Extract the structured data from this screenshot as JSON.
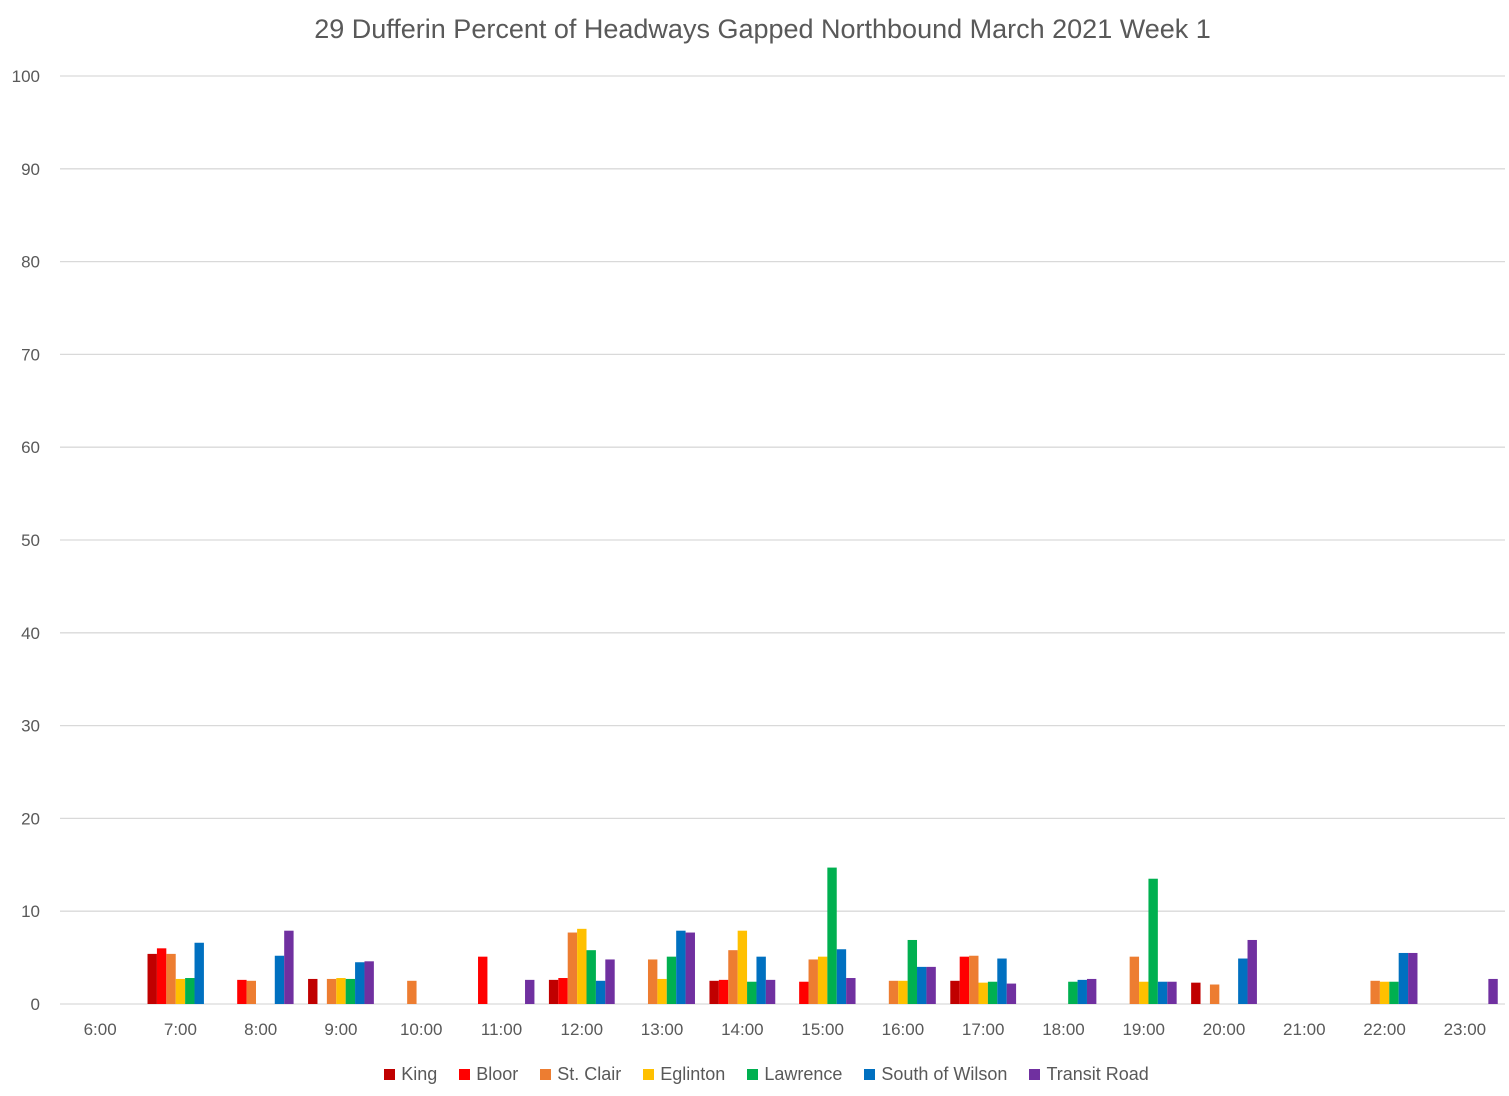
{
  "chart_data": {
    "type": "bar",
    "title": "29 Dufferin  Percent of Headways Gapped Northbound March 2021 Week 1",
    "xlabel": "",
    "ylabel": "",
    "ylim": [
      0,
      100
    ],
    "yticks": [
      0,
      10,
      20,
      30,
      40,
      50,
      60,
      70,
      80,
      90,
      100
    ],
    "grid": true,
    "legend_position": "bottom",
    "categories": [
      "6:00",
      "7:00",
      "8:00",
      "9:00",
      "10:00",
      "11:00",
      "12:00",
      "13:00",
      "14:00",
      "15:00",
      "16:00",
      "17:00",
      "18:00",
      "19:00",
      "20:00",
      "21:00",
      "22:00",
      "23:00"
    ],
    "series": [
      {
        "name": "King",
        "color": "#C00000",
        "values": [
          0,
          5.4,
          0,
          2.7,
          0,
          0,
          2.6,
          0,
          2.5,
          0,
          0,
          2.5,
          0,
          0,
          2.3,
          0,
          0,
          0
        ]
      },
      {
        "name": "Bloor",
        "color": "#FF0000",
        "values": [
          0,
          6.0,
          2.6,
          0,
          0,
          5.1,
          2.8,
          0,
          2.6,
          2.4,
          0,
          5.1,
          0,
          0,
          0,
          0,
          0,
          0
        ]
      },
      {
        "name": "St. Clair",
        "color": "#ED7D31",
        "values": [
          0,
          5.4,
          2.5,
          2.7,
          2.5,
          0,
          7.7,
          4.8,
          5.8,
          4.8,
          2.5,
          5.2,
          0,
          5.1,
          2.1,
          0,
          2.5,
          0
        ]
      },
      {
        "name": "Eglinton",
        "color": "#FFC000",
        "values": [
          0,
          2.7,
          0,
          2.8,
          0,
          0,
          8.1,
          2.7,
          7.9,
          5.1,
          2.5,
          2.3,
          0,
          2.4,
          0,
          0,
          2.4,
          0
        ]
      },
      {
        "name": "Lawrence",
        "color": "#00B050",
        "values": [
          0,
          2.8,
          0,
          2.7,
          0,
          0,
          5.8,
          5.1,
          2.4,
          14.7,
          6.9,
          2.4,
          2.4,
          13.5,
          0,
          0,
          2.4,
          0
        ]
      },
      {
        "name": "South of Wilson",
        "color": "#0070C0",
        "values": [
          0,
          6.6,
          5.2,
          4.5,
          0,
          0,
          2.5,
          7.9,
          5.1,
          5.9,
          4.0,
          4.9,
          2.6,
          2.4,
          4.9,
          0,
          5.5,
          0
        ]
      },
      {
        "name": "Transit Road",
        "color": "#7030A0",
        "values": [
          0,
          0,
          7.9,
          4.6,
          0,
          2.6,
          4.8,
          7.7,
          2.6,
          2.8,
          4.0,
          2.2,
          2.7,
          2.4,
          6.9,
          0,
          5.5,
          2.7
        ]
      }
    ]
  }
}
